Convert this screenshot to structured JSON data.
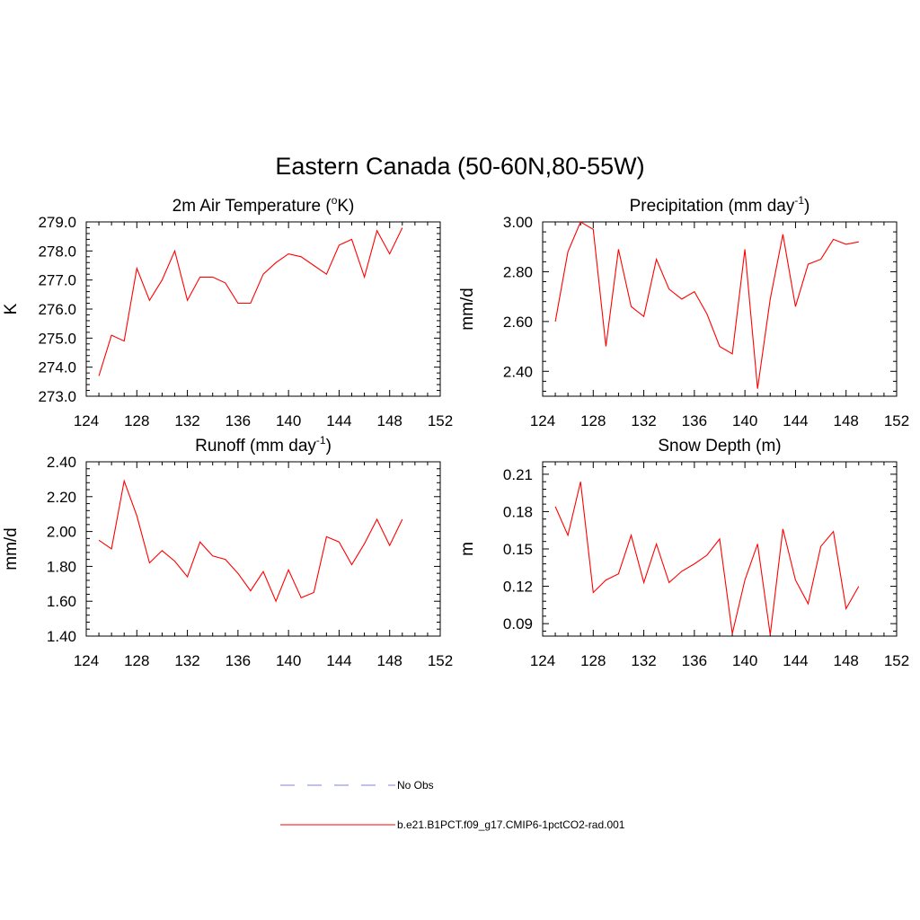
{
  "figure": {
    "title": "Eastern Canada (50-60N,80-55W)"
  },
  "legend": {
    "items": [
      {
        "label": "No Obs",
        "color": "#9999ee",
        "style": "dashed"
      },
      {
        "label": "b.e21.B1PCT.f09_g17.CMIP6-1pctCO2-rad.001",
        "color": "#ff0000",
        "style": "solid"
      }
    ]
  },
  "chart_data": [
    {
      "type": "line",
      "title": "2m Air Temperature (",
      "title_sup_prefix": "o",
      "title_suffix": "K)",
      "ylabel": "K",
      "xlim": [
        124,
        152
      ],
      "ylim": [
        273.0,
        279.0
      ],
      "xticks": [
        "124",
        "128",
        "132",
        "136",
        "140",
        "144",
        "148",
        "152"
      ],
      "yticks": [
        "273.0",
        "274.0",
        "275.0",
        "276.0",
        "277.0",
        "278.0",
        "279.0"
      ],
      "x": [
        125,
        126,
        127,
        128,
        129,
        130,
        131,
        132,
        133,
        134,
        135,
        136,
        137,
        138,
        139,
        140,
        141,
        142,
        143,
        144,
        145,
        146,
        147,
        148,
        149
      ],
      "series": [
        {
          "name": "b.e21.B1PCT.f09_g17.CMIP6-1pctCO2-rad.001",
          "color": "#ff0000",
          "values": [
            273.7,
            275.1,
            274.9,
            277.4,
            276.3,
            277.0,
            278.0,
            276.3,
            277.1,
            277.1,
            276.9,
            276.2,
            276.2,
            277.2,
            277.6,
            277.9,
            277.8,
            277.5,
            277.2,
            278.2,
            278.4,
            277.1,
            278.7,
            277.9,
            278.8
          ]
        }
      ]
    },
    {
      "type": "line",
      "title": "Precipitation (mm day",
      "title_sup": "-1",
      "title_suffix": ")",
      "ylabel": "mm/d",
      "xlim": [
        124,
        152
      ],
      "ylim": [
        2.3,
        3.0
      ],
      "xticks": [
        "124",
        "128",
        "132",
        "136",
        "140",
        "144",
        "148",
        "152"
      ],
      "yticks": [
        "2.40",
        "2.60",
        "2.80",
        "3.00"
      ],
      "ytick_values": [
        2.4,
        2.6,
        2.8,
        3.0
      ],
      "x": [
        125,
        126,
        127,
        128,
        129,
        130,
        131,
        132,
        133,
        134,
        135,
        136,
        137,
        138,
        139,
        140,
        141,
        142,
        143,
        144,
        145,
        146,
        147,
        148,
        149
      ],
      "series": [
        {
          "name": "b.e21.B1PCT.f09_g17.CMIP6-1pctCO2-rad.001",
          "color": "#ff0000",
          "values": [
            2.6,
            2.88,
            3.0,
            2.97,
            2.5,
            2.89,
            2.66,
            2.62,
            2.85,
            2.73,
            2.69,
            2.72,
            2.63,
            2.5,
            2.47,
            2.89,
            2.33,
            2.69,
            2.95,
            2.66,
            2.83,
            2.85,
            2.93,
            2.91,
            2.92
          ]
        }
      ]
    },
    {
      "type": "line",
      "title": "Runoff (mm day",
      "title_sup": "-1",
      "title_suffix": ")",
      "ylabel": "mm/d",
      "xlim": [
        124,
        152
      ],
      "ylim": [
        1.4,
        2.4
      ],
      "xticks": [
        "124",
        "128",
        "132",
        "136",
        "140",
        "144",
        "148",
        "152"
      ],
      "yticks": [
        "1.40",
        "1.60",
        "1.80",
        "2.00",
        "2.20",
        "2.40"
      ],
      "ytick_values": [
        1.4,
        1.6,
        1.8,
        2.0,
        2.2,
        2.4
      ],
      "x": [
        125,
        126,
        127,
        128,
        129,
        130,
        131,
        132,
        133,
        134,
        135,
        136,
        137,
        138,
        139,
        140,
        141,
        142,
        143,
        144,
        145,
        146,
        147,
        148,
        149
      ],
      "series": [
        {
          "name": "b.e21.B1PCT.f09_g17.CMIP6-1pctCO2-rad.001",
          "color": "#ff0000",
          "values": [
            1.95,
            1.9,
            2.29,
            2.09,
            1.82,
            1.89,
            1.83,
            1.74,
            1.94,
            1.86,
            1.84,
            1.76,
            1.66,
            1.77,
            1.6,
            1.78,
            1.62,
            1.65,
            1.97,
            1.94,
            1.81,
            1.93,
            2.07,
            1.92,
            2.07
          ]
        }
      ]
    },
    {
      "type": "line",
      "title": "Snow Depth (m)",
      "ylabel": "m",
      "xlim": [
        124,
        152
      ],
      "ylim": [
        0.08,
        0.22
      ],
      "xticks": [
        "124",
        "128",
        "132",
        "136",
        "140",
        "144",
        "148",
        "152"
      ],
      "yticks": [
        "0.09",
        "0.12",
        "0.15",
        "0.18",
        "0.21"
      ],
      "ytick_values": [
        0.09,
        0.12,
        0.15,
        0.18,
        0.21
      ],
      "x": [
        125,
        126,
        127,
        128,
        129,
        130,
        131,
        132,
        133,
        134,
        135,
        136,
        137,
        138,
        139,
        140,
        141,
        142,
        143,
        144,
        145,
        146,
        147,
        148,
        149
      ],
      "series": [
        {
          "name": "b.e21.B1PCT.f09_g17.CMIP6-1pctCO2-rad.001",
          "color": "#ff0000",
          "values": [
            0.184,
            0.161,
            0.204,
            0.115,
            0.125,
            0.13,
            0.161,
            0.123,
            0.154,
            0.123,
            0.132,
            0.138,
            0.145,
            0.158,
            0.082,
            0.125,
            0.154,
            0.081,
            0.166,
            0.125,
            0.106,
            0.152,
            0.164,
            0.102,
            0.12
          ]
        }
      ]
    }
  ]
}
